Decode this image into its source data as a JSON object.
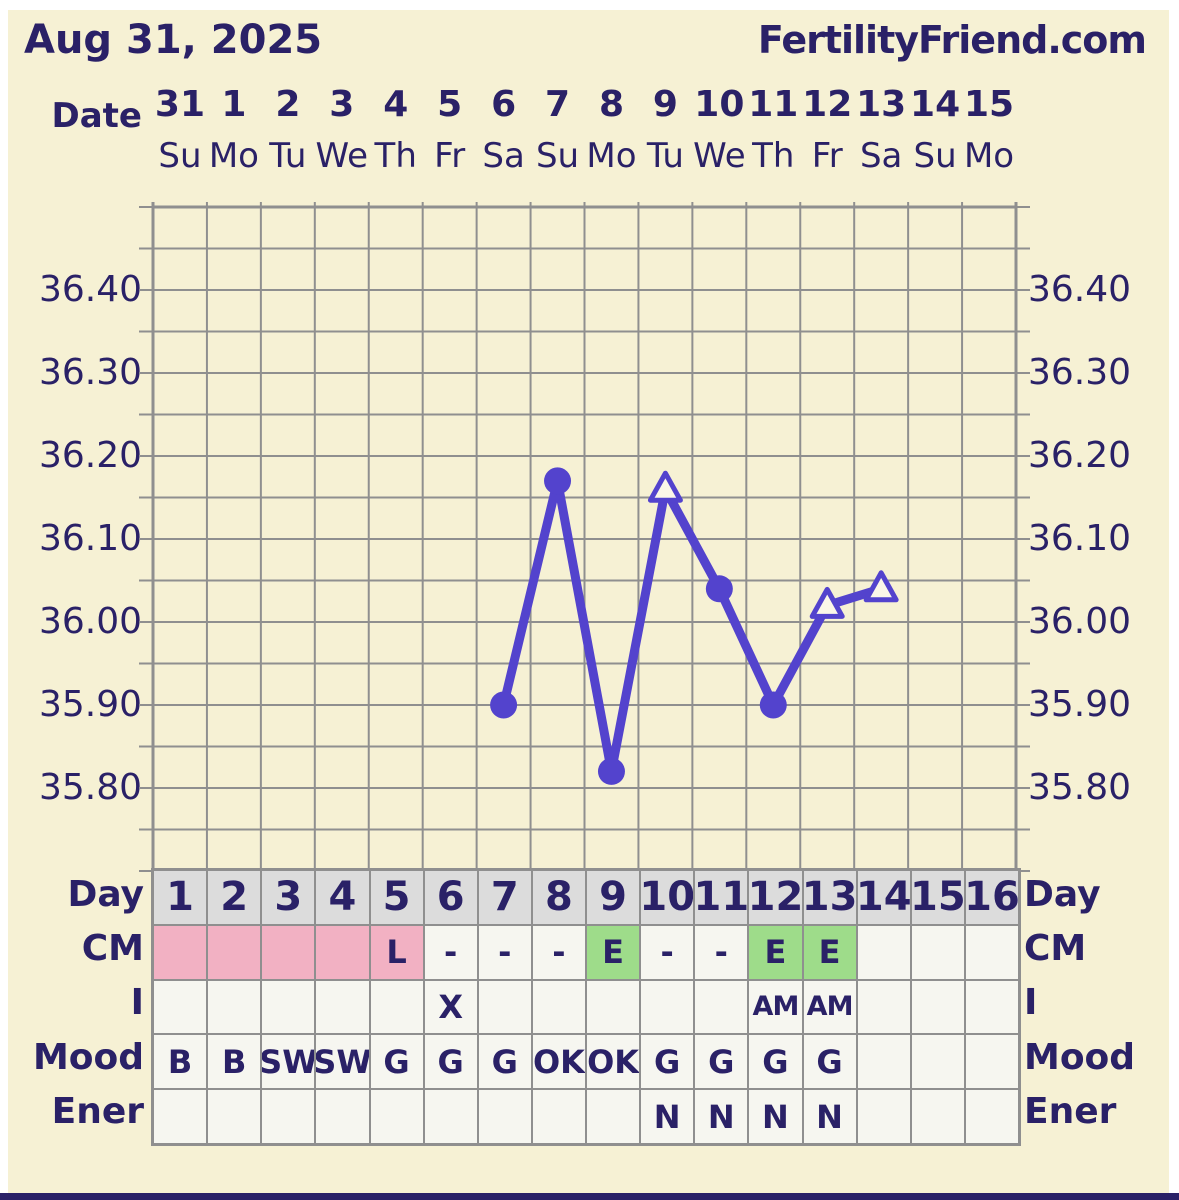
{
  "header": {
    "chart_date": "Aug 31, 2025",
    "site_name": "FertilityFriend.com"
  },
  "axis": {
    "date_label": "Date",
    "dates": [
      "31",
      "1",
      "2",
      "3",
      "4",
      "5",
      "6",
      "7",
      "8",
      "9",
      "10",
      "11",
      "12",
      "13",
      "14",
      "15"
    ],
    "weekdays": [
      "Su",
      "Mo",
      "Tu",
      "We",
      "Th",
      "Fr",
      "Sa",
      "Su",
      "Mo",
      "Tu",
      "We",
      "Th",
      "Fr",
      "Sa",
      "Su",
      "Mo"
    ],
    "temp_labels": [
      "36.40",
      "36.30",
      "36.20",
      "36.10",
      "36.00",
      "35.90",
      "35.80"
    ]
  },
  "chart_data": {
    "type": "line",
    "title": "Basal body temperature chart",
    "x_days": [
      7,
      8,
      9,
      10,
      11,
      12,
      13,
      14
    ],
    "temps_c": [
      35.9,
      36.17,
      35.82,
      36.16,
      36.04,
      35.9,
      36.02,
      36.04
    ],
    "markers": [
      "dot",
      "dot",
      "dot",
      "open-triangle",
      "dot",
      "dot",
      "open-triangle",
      "open-triangle"
    ],
    "ylim": [
      35.7,
      36.5
    ],
    "y_tick_step": 0.05,
    "y_label_step": 0.1,
    "x_columns": 16,
    "grid": true,
    "legend": "none"
  },
  "table": {
    "left_labels": [
      "Day",
      "CM",
      "I",
      "Mood",
      "Ener"
    ],
    "right_labels": [
      "Day",
      "CM",
      "I",
      "Mood",
      "Ener"
    ],
    "day_numbers": [
      "1",
      "2",
      "3",
      "4",
      "5",
      "6",
      "7",
      "8",
      "9",
      "10",
      "11",
      "12",
      "13",
      "14",
      "15",
      "16"
    ],
    "cm_values": [
      "",
      "",
      "",
      "",
      "L",
      "-",
      "-",
      "-",
      "E",
      "-",
      "-",
      "E",
      "E",
      "",
      "",
      ""
    ],
    "cm_bg": [
      "pink",
      "pink",
      "pink",
      "pink",
      "pink",
      "plain",
      "plain",
      "plain",
      "green",
      "plain",
      "plain",
      "green",
      "green",
      "plain",
      "plain",
      "plain"
    ],
    "intercourse_values": [
      "",
      "",
      "",
      "",
      "",
      "X",
      "",
      "",
      "",
      "",
      "",
      "AM",
      "AM",
      "",
      "",
      ""
    ],
    "mood_values": [
      "B",
      "B",
      "SW",
      "SW",
      "G",
      "G",
      "G",
      "OK",
      "OK",
      "G",
      "G",
      "G",
      "G",
      "",
      "",
      ""
    ],
    "energy_values": [
      "",
      "",
      "",
      "",
      "",
      "",
      "",
      "",
      "",
      "N",
      "N",
      "N",
      "N",
      "",
      "",
      ""
    ]
  },
  "colors": {
    "background_cream": "#f6f1d4",
    "frame_white": "#ffffff",
    "text_navy": "#2a2167",
    "line_purple": "#5343cd",
    "grid_gray": "#8f8f8f",
    "cell_offwhite": "#f6f6f0",
    "day_header_gray": "#dcdcdc",
    "cm_pink": "#f2b1c3",
    "cm_green": "#9edc8a",
    "triangle_fill": "#fbf7e8",
    "footer_navy": "#2a2167"
  }
}
